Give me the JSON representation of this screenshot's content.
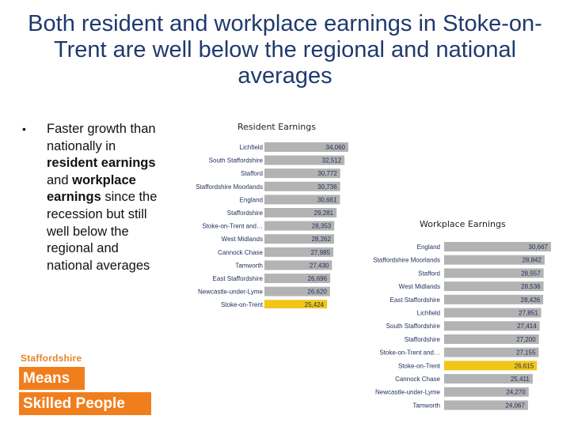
{
  "slide": {
    "title": "Both resident and workplace earnings in Stoke-on-Trent are well below the regional and national averages",
    "bullet": {
      "symbol": "•",
      "t1": "Faster growth than nationally in ",
      "b1": "resident earnings",
      "t2": " and ",
      "b2": "workplace earnings",
      "t3": " since the recession but  still well below the regional and national averages"
    }
  },
  "logo": {
    "line1": "Staffordshire",
    "line2": "Means",
    "line3": "Skilled People",
    "color": "#f07e1d"
  },
  "colors": {
    "bar": "#b3b3b3",
    "highlight": "#f2c618",
    "label": "#1f2d5a"
  },
  "chart_data": [
    {
      "type": "bar",
      "orientation": "horizontal",
      "title": "Resident Earnings",
      "categories": [
        "Lichfield",
        "South Staffordshire",
        "Stafford",
        "Staffordshire Moorlands",
        "England",
        "Staffordshire",
        "Stoke-on-Trent and…",
        "West Midlands",
        "Cannock Chase",
        "Tamworth",
        "East Staffordshire",
        "Newcastle-under-Lyme",
        "Stoke-on-Trent"
      ],
      "values": [
        34060,
        32512,
        30772,
        30736,
        30661,
        29281,
        28353,
        28262,
        27985,
        27430,
        26696,
        26620,
        25424
      ],
      "value_labels": [
        "34,060",
        "32,512",
        "30,772",
        "30,736",
        "30,661",
        "29,281",
        "28,353",
        "28,262",
        "27,985",
        "27,430",
        "26,696",
        "26,620",
        "25,424"
      ],
      "highlight": "Stoke-on-Trent",
      "xlim": [
        0,
        34060
      ]
    },
    {
      "type": "bar",
      "orientation": "horizontal",
      "title": "Workplace Earnings",
      "categories": [
        "England",
        "Staffordshire Moorlands",
        "Stafford",
        "West Midlands",
        "East Staffordshire",
        "Lichfield",
        "South Staffordshire",
        "Staffordshire",
        "Stoke-on-Trent and…",
        "Stoke-on-Trent",
        "Cannock Chase",
        "Newcastle-under-Lyme",
        "Tamworth"
      ],
      "values": [
        30667,
        28842,
        28557,
        28536,
        28426,
        27851,
        27414,
        27200,
        27155,
        26615,
        25411,
        24270,
        24067
      ],
      "value_labels": [
        "30,667",
        "28,842",
        "28,557",
        "28,536",
        "28,426",
        "27,851",
        "27,414",
        "27,200",
        "27,155",
        "26,615",
        "25,411",
        "24,270",
        "24,067"
      ],
      "highlight": "Stoke-on-Trent",
      "xlim": [
        0,
        30667
      ]
    }
  ]
}
